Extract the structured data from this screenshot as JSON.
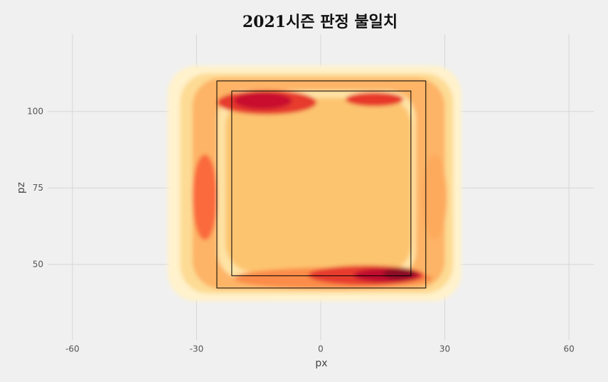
{
  "chart_data": {
    "type": "density",
    "title": "2021시즌 판정 불일치",
    "x_label": "px",
    "y_label": "pz",
    "xlim": [
      -66,
      66
    ],
    "ylim": [
      25.3,
      125.3
    ],
    "xticks": [
      -60,
      -30,
      0,
      30,
      60
    ],
    "yticks": [
      50,
      75,
      100
    ],
    "grid": true,
    "bands": [
      {
        "x0": -37,
        "x1": 34,
        "y0": 38,
        "y1": 115,
        "color": "#fff2cc"
      },
      {
        "x0": -34,
        "x1": 32,
        "y0": 40.5,
        "y1": 112.5,
        "color": "#fddb94"
      },
      {
        "x0": -31,
        "x1": 30,
        "y0": 42,
        "y1": 111,
        "color": "#fdb466"
      },
      {
        "x0": -25,
        "x1": 23,
        "y0": 45,
        "y1": 107,
        "color": "#fee3a5"
      },
      {
        "x0": -23,
        "x1": 22,
        "y0": 47.5,
        "y1": 104.5,
        "color": "#fdc470"
      }
    ],
    "hotspots": [
      {
        "cx": -28,
        "cy": 72,
        "rx": 3,
        "ry": 14,
        "color": "#fa6a3c"
      },
      {
        "cx": 27.5,
        "cy": 72,
        "rx": 3,
        "ry": 14,
        "color": "#fdaa5d"
      },
      {
        "cx": -13,
        "cy": 103,
        "rx": 12,
        "ry": 4,
        "color": "#e73a2d"
      },
      {
        "cx": -14,
        "cy": 103.5,
        "rx": 7,
        "ry": 2.8,
        "color": "#c8102e"
      },
      {
        "cx": 13,
        "cy": 104,
        "rx": 7,
        "ry": 2.3,
        "color": "#e7382b"
      },
      {
        "cx": 3,
        "cy": 45.5,
        "rx": 24,
        "ry": 3.5,
        "color": "#fb8c4a"
      },
      {
        "cx": 11,
        "cy": 46.5,
        "rx": 14,
        "ry": 3.2,
        "color": "#e73a2d"
      },
      {
        "cx": 16,
        "cy": 46.5,
        "rx": 8,
        "ry": 2.4,
        "color": "#c0102f"
      },
      {
        "cx": 19,
        "cy": 47,
        "rx": 4,
        "ry": 1.8,
        "color": "#8b0a25"
      }
    ],
    "zones": [
      {
        "x0": -25.1,
        "x1": 25.4,
        "y0": 42.3,
        "y1": 110
      },
      {
        "x0": -21.5,
        "x1": 21.8,
        "y0": 46.3,
        "y1": 106.7
      }
    ]
  }
}
